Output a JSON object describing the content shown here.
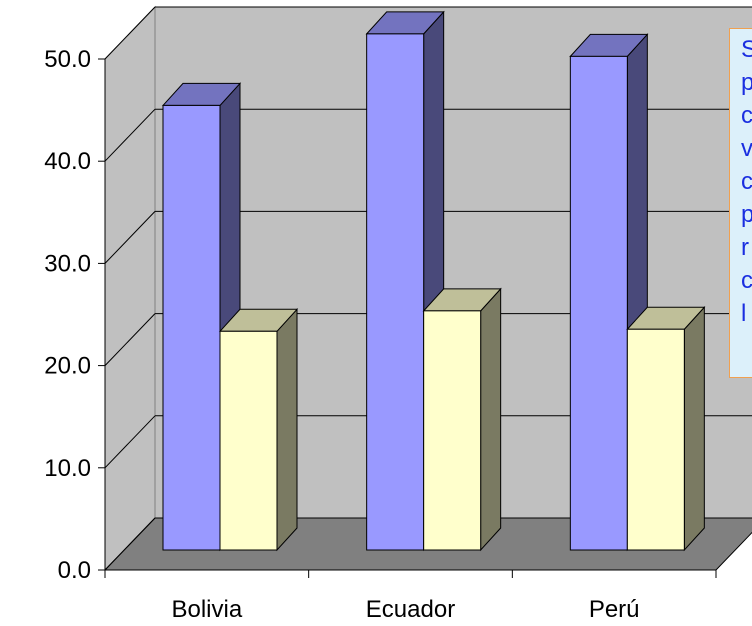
{
  "chart_data": {
    "type": "bar",
    "title": "",
    "xlabel": "",
    "ylabel": "",
    "categories": [
      "Bolivia",
      "Ecuador",
      "Perú"
    ],
    "series": [
      {
        "values": [
          43.5,
          50.5,
          48.3
        ],
        "color": "#9999ff"
      },
      {
        "values": [
          21.4,
          23.4,
          21.6
        ],
        "color": "#ffffcc"
      }
    ],
    "ylim": [
      0,
      50
    ],
    "yticks": [
      "0.0",
      "10.0",
      "20.0",
      "30.0",
      "40.0",
      "50.0"
    ],
    "ytick_values": [
      0,
      10,
      20,
      30,
      40,
      50
    ],
    "grid": true,
    "three_d": true,
    "wall_color": "#c0c0c0",
    "floor_color": "#808080"
  },
  "annotation": {
    "lines": [
      "S",
      "p",
      "c",
      "v",
      "c",
      "p",
      "r",
      "c",
      "l"
    ],
    "text_color": "#1a2ee0",
    "background": "#dcf0fa",
    "border_color": "#f0a050"
  }
}
